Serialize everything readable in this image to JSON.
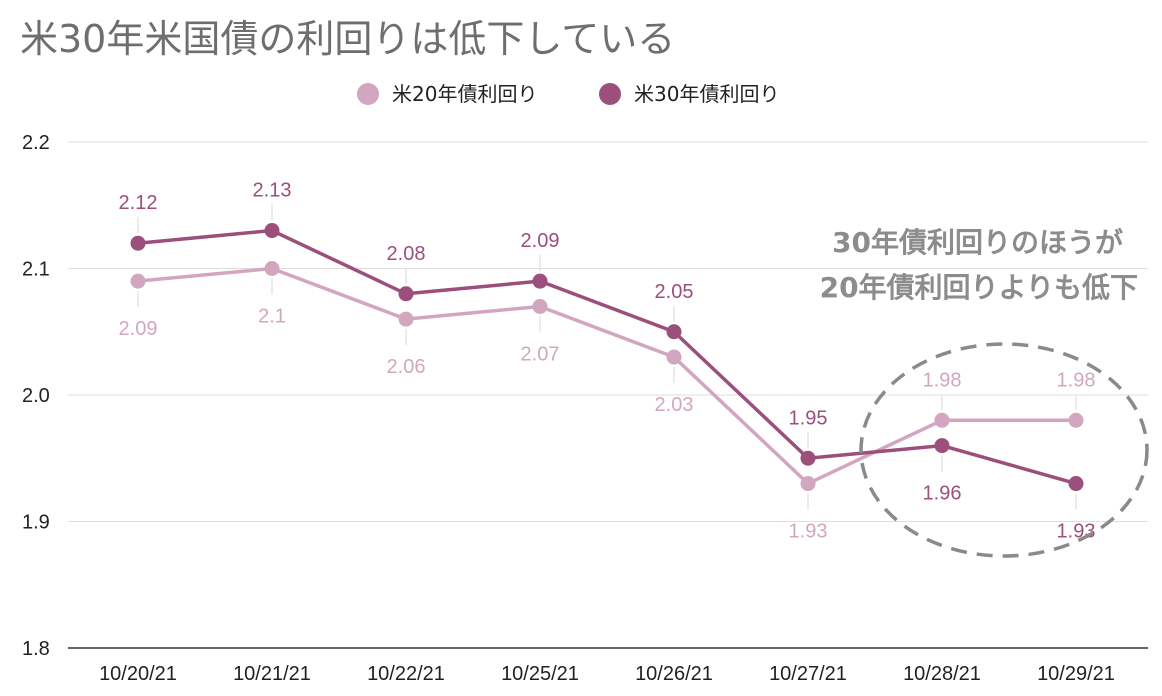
{
  "chart_data": {
    "type": "line",
    "title": "米30年米国債の利回りは低下している",
    "categories": [
      "10/20/21",
      "10/21/21",
      "10/22/21",
      "10/25/21",
      "10/26/21",
      "10/27/21",
      "10/28/21",
      "10/29/21"
    ],
    "series": [
      {
        "name": "米20年債利回り",
        "color": "#d3a6bf",
        "values": [
          2.09,
          2.1,
          2.06,
          2.07,
          2.03,
          1.93,
          1.98,
          1.98
        ],
        "labels": [
          "2.09",
          "2.1",
          "2.06",
          "2.07",
          "2.03",
          "1.93",
          "1.98",
          "1.98"
        ]
      },
      {
        "name": "米30年債利回り",
        "color": "#9b4f7a",
        "values": [
          2.12,
          2.13,
          2.08,
          2.09,
          2.05,
          1.95,
          1.96,
          1.93
        ],
        "labels": [
          "2.12",
          "2.13",
          "2.08",
          "2.09",
          "2.05",
          "1.95",
          "1.96",
          "1.93"
        ]
      }
    ],
    "ylim": [
      1.8,
      2.2
    ],
    "yticks": [
      "1.8",
      "1.9",
      "2.0",
      "2.1",
      "2.2"
    ],
    "grid": true,
    "legend": "top-center",
    "annotation": {
      "lines": [
        "30年債利回りのほうが",
        "20年債利回りよりも低下"
      ],
      "highlight": "dashed ellipse around 10/28/21–10/29/21"
    }
  }
}
